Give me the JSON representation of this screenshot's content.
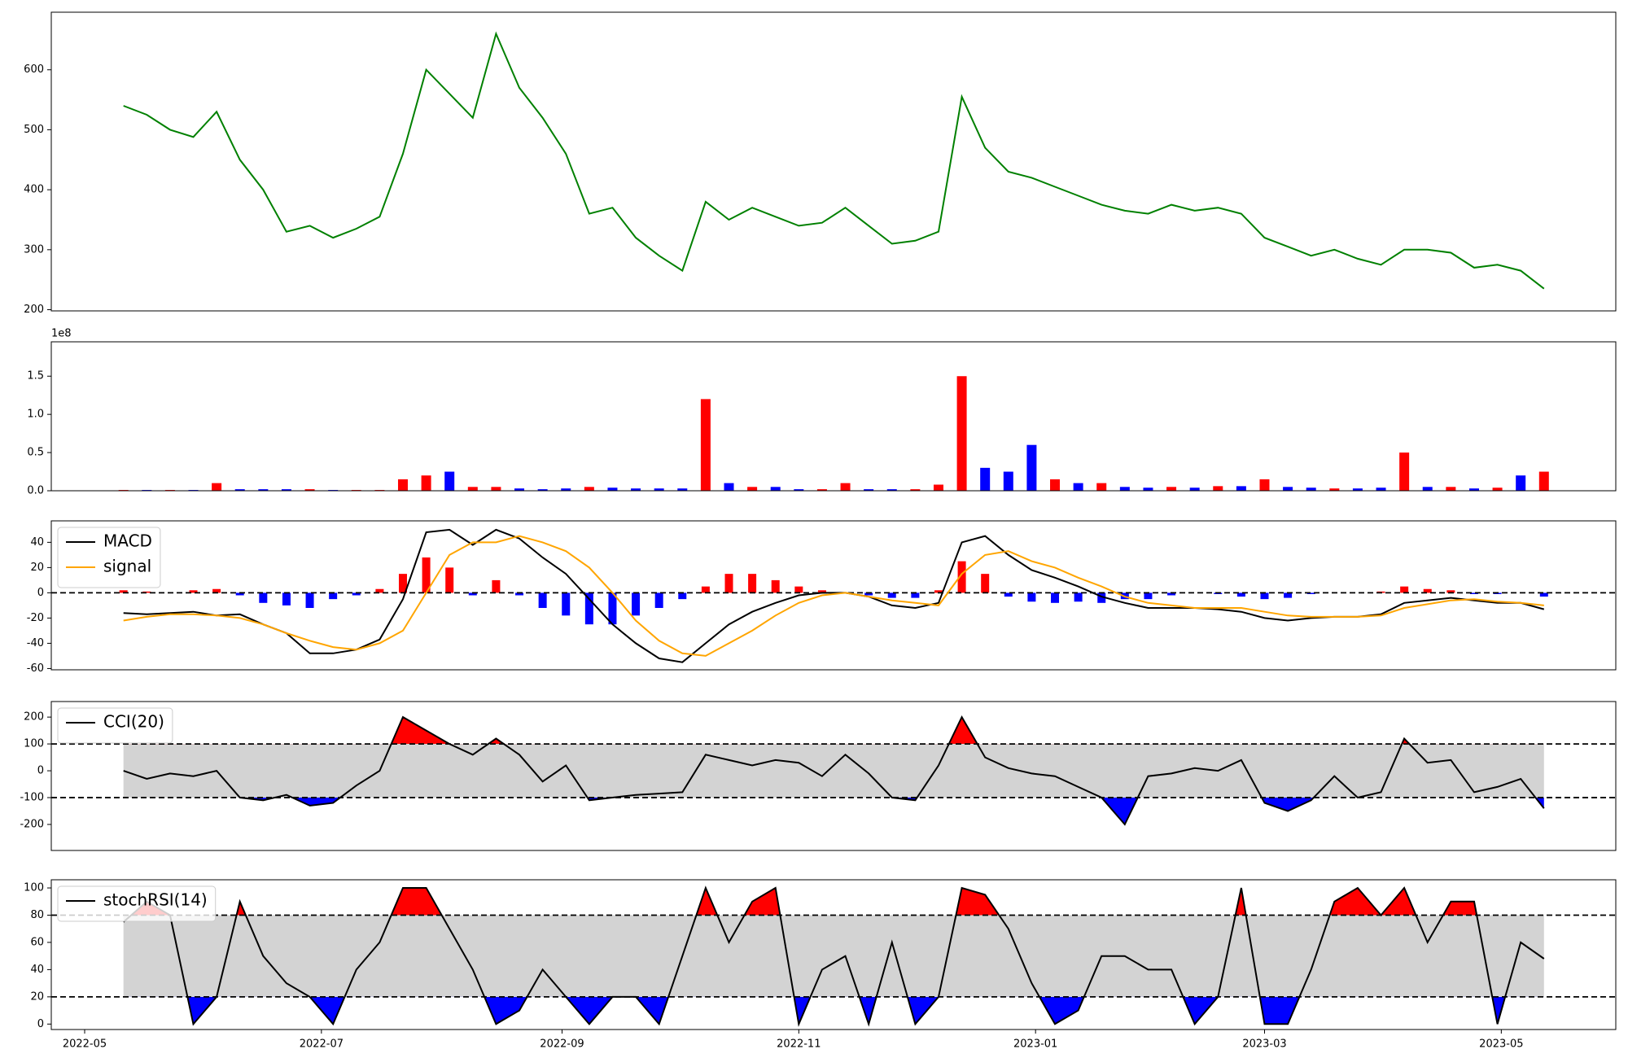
{
  "chart_data": [
    {
      "type": "line",
      "color": "green",
      "x": [
        10,
        16,
        22,
        28,
        34,
        40,
        46,
        52,
        58,
        64,
        70,
        76,
        82,
        88,
        94,
        100,
        106,
        112,
        118,
        124,
        130,
        136,
        142,
        148,
        154,
        160,
        166,
        172,
        178,
        184,
        190,
        196,
        202,
        208,
        214,
        220,
        226,
        232,
        238,
        244,
        250,
        256,
        262,
        268,
        274,
        280,
        286,
        292,
        298,
        304,
        310,
        316,
        322,
        328,
        334,
        340,
        346,
        352,
        358,
        364,
        370,
        376
      ],
      "values": [
        540,
        525,
        500,
        488,
        530,
        450,
        400,
        330,
        340,
        320,
        335,
        355,
        460,
        600,
        560,
        520,
        660,
        570,
        520,
        460,
        360,
        370,
        320,
        290,
        265,
        380,
        350,
        370,
        355,
        340,
        345,
        370,
        340,
        310,
        315,
        330,
        555,
        470,
        430,
        420,
        405,
        390,
        375,
        365,
        360,
        375,
        365,
        370,
        360,
        320,
        305,
        290,
        300,
        285,
        275,
        300,
        300,
        295,
        270,
        275,
        265,
        235
      ],
      "xlim": [
        -8.6,
        394.5
      ],
      "ylim": [
        198,
        696
      ],
      "yticks": [
        200,
        300,
        400,
        500,
        600
      ]
    },
    {
      "type": "bar",
      "y_offset_label": "1e8",
      "x": [
        10,
        16,
        22,
        28,
        34,
        40,
        46,
        52,
        58,
        64,
        70,
        76,
        82,
        88,
        94,
        100,
        106,
        112,
        118,
        124,
        130,
        136,
        142,
        148,
        154,
        160,
        166,
        172,
        178,
        184,
        190,
        196,
        202,
        208,
        214,
        220,
        226,
        232,
        238,
        244,
        250,
        256,
        262,
        268,
        274,
        280,
        286,
        292,
        298,
        304,
        310,
        316,
        322,
        328,
        334,
        340,
        346,
        352,
        358,
        364,
        370,
        376
      ],
      "values": [
        0.01,
        0.01,
        0.01,
        0.01,
        0.1,
        0.02,
        0.02,
        0.02,
        0.02,
        0.01,
        0.01,
        0.01,
        0.15,
        0.2,
        0.25,
        0.05,
        0.05,
        0.03,
        0.02,
        0.03,
        0.05,
        0.04,
        0.03,
        0.03,
        0.03,
        1.2,
        0.1,
        0.05,
        0.05,
        0.02,
        0.02,
        0.1,
        0.02,
        0.02,
        0.02,
        0.08,
        1.5,
        0.3,
        0.25,
        0.6,
        0.15,
        0.1,
        0.1,
        0.05,
        0.04,
        0.05,
        0.04,
        0.06,
        0.06,
        0.15,
        0.05,
        0.04,
        0.03,
        0.03,
        0.04,
        0.5,
        0.05,
        0.05,
        0.03,
        0.04,
        0.2,
        0.25
      ],
      "colors": [
        "red",
        "blue",
        "red",
        "blue",
        "red",
        "blue",
        "blue",
        "blue",
        "red",
        "blue",
        "red",
        "red",
        "red",
        "red",
        "blue",
        "red",
        "red",
        "blue",
        "blue",
        "blue",
        "red",
        "blue",
        "blue",
        "blue",
        "blue",
        "red",
        "blue",
        "red",
        "blue",
        "blue",
        "red",
        "red",
        "blue",
        "blue",
        "red",
        "red",
        "red",
        "blue",
        "blue",
        "blue",
        "red",
        "blue",
        "red",
        "blue",
        "blue",
        "red",
        "blue",
        "red",
        "blue",
        "red",
        "blue",
        "blue",
        "red",
        "blue",
        "blue",
        "red",
        "blue",
        "red",
        "blue",
        "red",
        "blue",
        "red"
      ],
      "xlim": [
        -8.6,
        394.5
      ],
      "ylim": [
        0,
        1.95
      ],
      "yticks": [
        {
          "value": 0,
          "label": "0.0"
        },
        0.5,
        {
          "value": 1,
          "label": "1.0"
        },
        1.5
      ]
    },
    {
      "type": "line",
      "legend": "upper left",
      "thresholds": [
        0
      ],
      "x": [
        10,
        16,
        22,
        28,
        34,
        40,
        46,
        52,
        58,
        64,
        70,
        76,
        82,
        88,
        94,
        100,
        106,
        112,
        118,
        124,
        130,
        136,
        142,
        148,
        154,
        160,
        166,
        172,
        178,
        184,
        190,
        196,
        202,
        208,
        214,
        220,
        226,
        232,
        238,
        244,
        250,
        256,
        262,
        268,
        274,
        280,
        286,
        292,
        298,
        304,
        310,
        316,
        322,
        328,
        334,
        340,
        346,
        352,
        358,
        364,
        370,
        376
      ],
      "series": [
        {
          "name": "MACD",
          "color": "black",
          "values": [
            -16,
            -17,
            -16,
            -15,
            -18,
            -17,
            -25,
            -32,
            -48,
            -48,
            -45,
            -37,
            -5,
            48,
            50,
            38,
            50,
            43,
            28,
            15,
            -5,
            -25,
            -40,
            -52,
            -55,
            -40,
            -25,
            -15,
            -8,
            -2,
            0,
            0,
            -3,
            -10,
            -12,
            -8,
            40,
            45,
            30,
            18,
            12,
            5,
            -3,
            -8,
            -12,
            -12,
            -12,
            -13,
            -15,
            -20,
            -22,
            -20,
            -19,
            -19,
            -17,
            -8,
            -6,
            -4,
            -6,
            -8,
            -8,
            -13
          ]
        },
        {
          "name": "signal",
          "color": "orange",
          "values": [
            -22,
            -19,
            -17,
            -17,
            -18,
            -20,
            -25,
            -32,
            -38,
            -43,
            -45,
            -40,
            -30,
            0,
            30,
            40,
            40,
            45,
            40,
            33,
            20,
            0,
            -22,
            -38,
            -48,
            -50,
            -40,
            -30,
            -18,
            -8,
            -2,
            0,
            -3,
            -6,
            -8,
            -10,
            15,
            30,
            33,
            25,
            20,
            12,
            5,
            -3,
            -8,
            -10,
            -12,
            -12,
            -12,
            -15,
            -18,
            -19,
            -19,
            -19,
            -18,
            -12,
            -9,
            -6,
            -5,
            -7,
            -8,
            -10
          ]
        }
      ],
      "histogram": {
        "up_color": "red",
        "down_color": "blue",
        "values": [
          2,
          1,
          0,
          2,
          3,
          -2,
          -8,
          -10,
          -12,
          -5,
          -2,
          3,
          15,
          28,
          20,
          -2,
          10,
          -2,
          -12,
          -18,
          -25,
          -25,
          -18,
          -12,
          -5,
          5,
          15,
          15,
          10,
          5,
          2,
          0,
          -2,
          -4,
          -4,
          2,
          25,
          15,
          -3,
          -7,
          -8,
          -7,
          -8,
          -5,
          -5,
          -2,
          0,
          -1,
          -3,
          -5,
          -4,
          -1,
          0,
          0,
          1,
          5,
          3,
          2,
          -1,
          -1,
          0,
          -3
        ]
      },
      "xlim": [
        -8.6,
        394.5
      ],
      "ylim": [
        -61,
        57
      ],
      "yticks": [
        -60,
        -40,
        -20,
        0,
        20,
        40
      ]
    },
    {
      "type": "line",
      "legend": "upper left",
      "thresholds": [
        100,
        -100
      ],
      "band_color": "lightgray",
      "above_color": "red",
      "below_color": "blue",
      "x": [
        10,
        16,
        22,
        28,
        34,
        40,
        46,
        52,
        58,
        64,
        70,
        76,
        82,
        88,
        94,
        100,
        106,
        112,
        118,
        124,
        130,
        136,
        142,
        148,
        154,
        160,
        166,
        172,
        178,
        184,
        190,
        196,
        202,
        208,
        214,
        220,
        226,
        232,
        238,
        244,
        250,
        256,
        262,
        268,
        274,
        280,
        286,
        292,
        298,
        304,
        310,
        316,
        322,
        328,
        334,
        340,
        346,
        352,
        358,
        364,
        370,
        376
      ],
      "series": [
        {
          "name": "CCI(20)",
          "color": "black",
          "values": [
            0,
            -30,
            -10,
            -20,
            0,
            -100,
            -110,
            -90,
            -130,
            -120,
            -55,
            0,
            200,
            150,
            100,
            60,
            120,
            60,
            -40,
            20,
            -110,
            -100,
            -90,
            -85,
            -80,
            60,
            40,
            20,
            40,
            30,
            -20,
            60,
            -10,
            -100,
            -110,
            20,
            200,
            50,
            10,
            -10,
            -20,
            -60,
            -100,
            -200,
            -20,
            -10,
            10,
            0,
            40,
            -120,
            -150,
            -110,
            -20,
            -100,
            -80,
            120,
            30,
            40,
            -80,
            -60,
            -30,
            -140
          ]
        }
      ],
      "xlim": [
        -8.6,
        394.5
      ],
      "ylim": [
        -297,
        258
      ],
      "yticks": [
        -200,
        -100,
        0,
        100,
        200
      ]
    },
    {
      "type": "line",
      "legend": "upper left",
      "thresholds": [
        80,
        20
      ],
      "band_color": "lightgray",
      "above_color": "red",
      "below_color": "blue",
      "x": [
        10,
        16,
        22,
        28,
        34,
        40,
        46,
        52,
        58,
        64,
        70,
        76,
        82,
        88,
        94,
        100,
        106,
        112,
        118,
        124,
        130,
        136,
        142,
        148,
        154,
        160,
        166,
        172,
        178,
        184,
        190,
        196,
        202,
        208,
        214,
        220,
        226,
        232,
        238,
        244,
        250,
        256,
        262,
        268,
        274,
        280,
        286,
        292,
        298,
        304,
        310,
        316,
        322,
        328,
        334,
        340,
        346,
        352,
        358,
        364,
        370,
        376
      ],
      "series": [
        {
          "name": "stochRSI(14)",
          "color": "black",
          "values": [
            75,
            90,
            80,
            0,
            20,
            90,
            50,
            30,
            20,
            0,
            40,
            60,
            100,
            100,
            70,
            40,
            0,
            10,
            40,
            20,
            0,
            20,
            20,
            0,
            50,
            100,
            60,
            90,
            100,
            0,
            40,
            50,
            0,
            60,
            0,
            20,
            100,
            95,
            70,
            30,
            0,
            10,
            50,
            50,
            40,
            40,
            0,
            20,
            100,
            0,
            0,
            40,
            90,
            100,
            80,
            100,
            60,
            90,
            90,
            0,
            60,
            48
          ]
        }
      ],
      "xlim": [
        -8.6,
        394.5
      ],
      "ylim": [
        -4,
        106
      ],
      "yticks": [
        0,
        20,
        40,
        60,
        80,
        100
      ],
      "xticks": [
        {
          "value": 0,
          "label": "2022-05"
        },
        {
          "value": 61,
          "label": "2022-07"
        },
        {
          "value": 123,
          "label": "2022-09"
        },
        {
          "value": 184,
          "label": "2022-11"
        },
        {
          "value": 245,
          "label": "2023-01"
        },
        {
          "value": 304,
          "label": "2023-03"
        },
        {
          "value": 365,
          "label": "2023-05"
        }
      ]
    }
  ]
}
